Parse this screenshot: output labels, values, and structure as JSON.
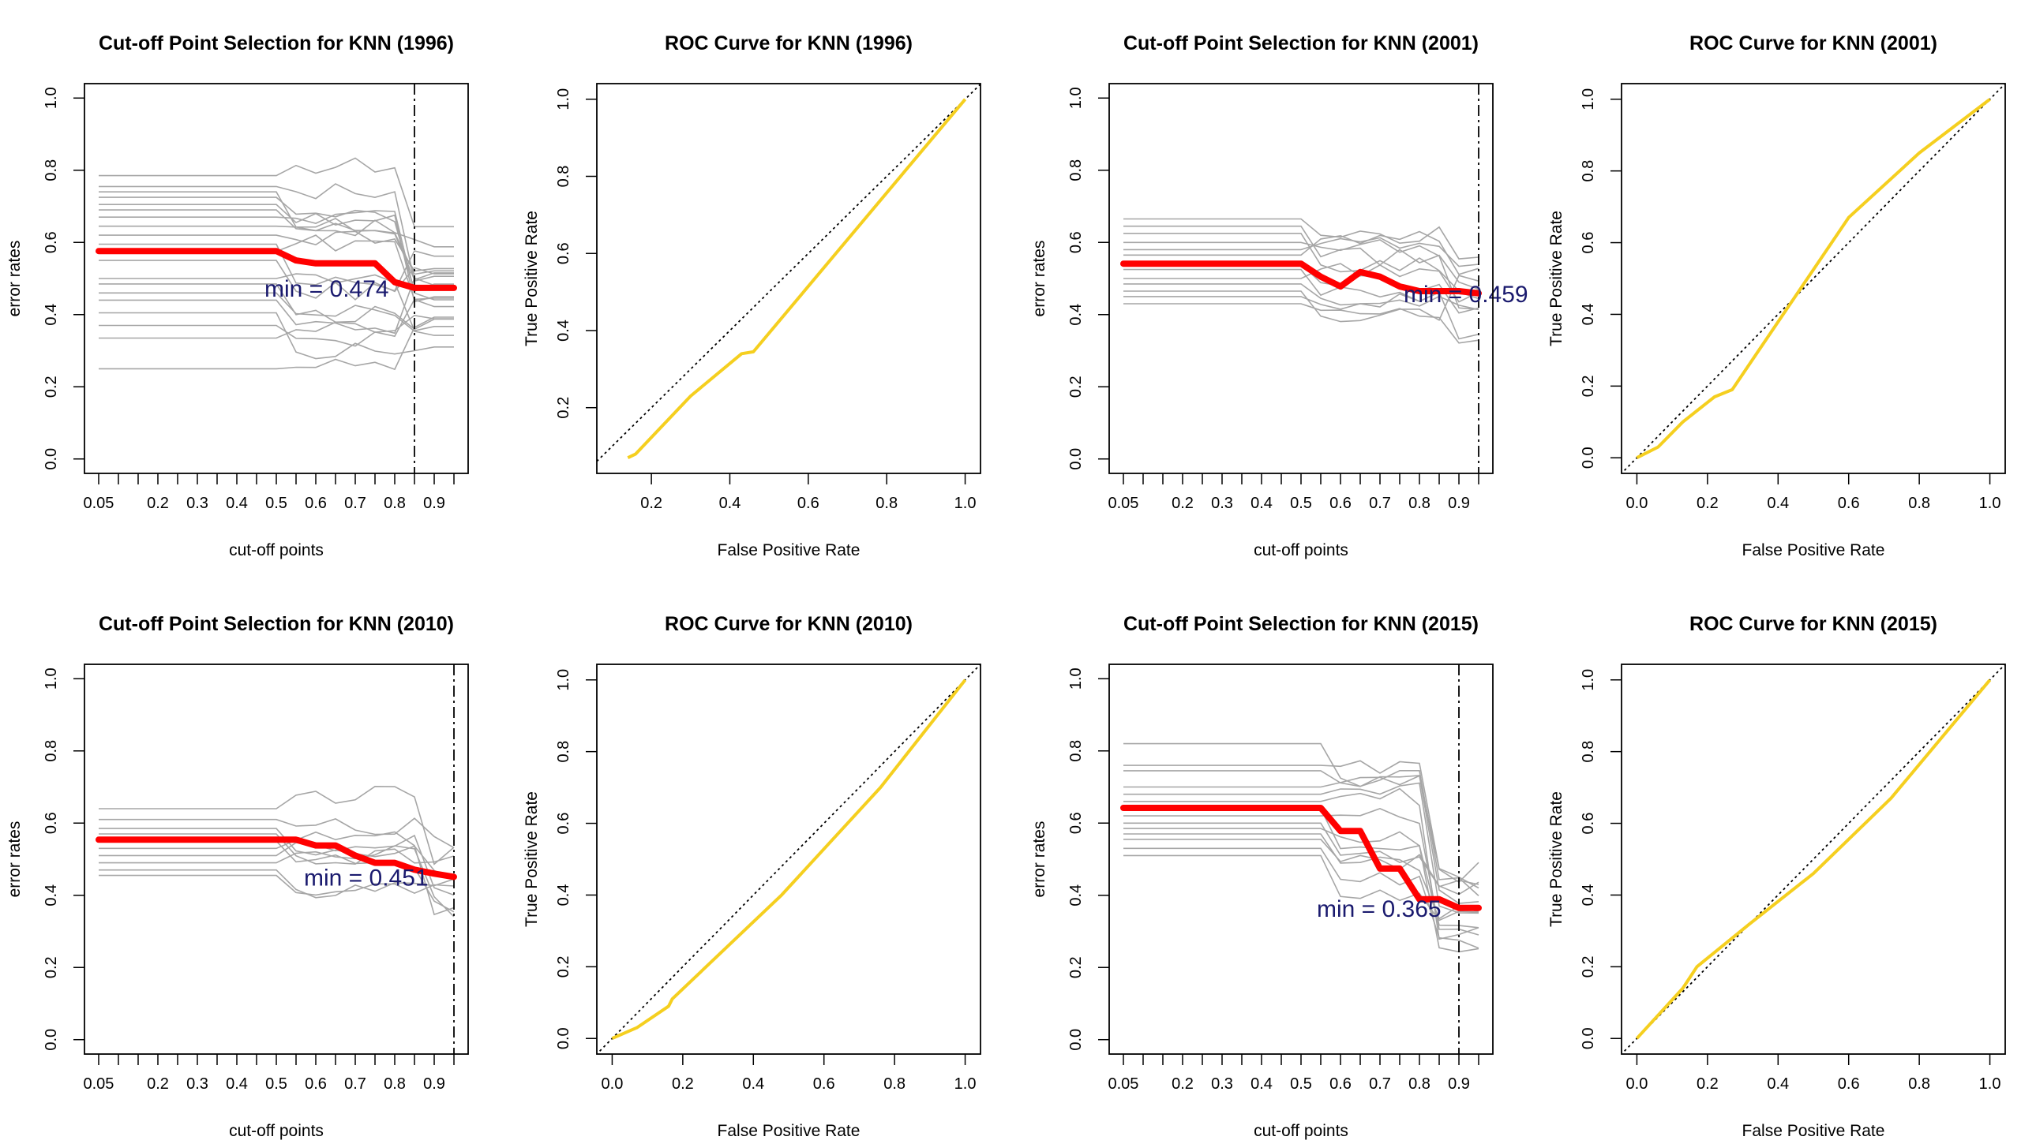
{
  "colors": {
    "mean_line": "#ff0000",
    "thin_lines": "#a6a6a6",
    "roc_line": "#f5cf1f",
    "annotation": "#1a1a6e",
    "axes": "#000000"
  },
  "chart_data": [
    {
      "type": "line",
      "title": "Cut-off Point Selection for KNN (1996)",
      "xlabel": "cut-off points",
      "ylabel": "error rates",
      "x": [
        0.05,
        0.1,
        0.15,
        0.2,
        0.25,
        0.3,
        0.35,
        0.4,
        0.45,
        0.5,
        0.55,
        0.6,
        0.65,
        0.7,
        0.75,
        0.8,
        0.85,
        0.9,
        0.95
      ],
      "xticks": [
        "0.05",
        "0.2",
        "0.3",
        "0.4",
        "0.5",
        "0.6",
        "0.7",
        "0.8",
        "0.9"
      ],
      "yticks": [
        "0.0",
        "0.2",
        "0.4",
        "0.6",
        "0.8",
        "1.0"
      ],
      "xlim": [
        0.05,
        0.95
      ],
      "ylim": [
        0.0,
        1.0
      ],
      "mean": [
        0.576,
        0.576,
        0.576,
        0.576,
        0.576,
        0.576,
        0.576,
        0.576,
        0.576,
        0.576,
        0.55,
        0.542,
        0.542,
        0.542,
        0.542,
        0.49,
        0.474,
        0.474,
        0.474
      ],
      "fold_levels": [
        0.785,
        0.755,
        0.74,
        0.725,
        0.705,
        0.69,
        0.67,
        0.645,
        0.62,
        0.595,
        0.575,
        0.55,
        0.5,
        0.485,
        0.46,
        0.44,
        0.405,
        0.37,
        0.335,
        0.25
      ],
      "fold_change": [
        0.5,
        0.55,
        0.8,
        0.85
      ],
      "cutoff_line": 0.85,
      "min_label": "min = 0.474",
      "min_label_pos": [
        0.47,
        0.474
      ]
    },
    {
      "type": "line",
      "title": "ROC Curve for KNN (1996)",
      "xlabel": "False Positive Rate",
      "ylabel": "True Positive Rate",
      "xlim": [
        0.1,
        1.0
      ],
      "ylim": [
        0.07,
        1.0
      ],
      "xticks": [
        "0.2",
        "0.4",
        "0.6",
        "0.8",
        "1.0"
      ],
      "yticks": [
        "0.2",
        "0.4",
        "0.6",
        "0.8",
        "1.0"
      ],
      "roc": [
        [
          0.14,
          0.07
        ],
        [
          0.16,
          0.08
        ],
        [
          0.3,
          0.23
        ],
        [
          0.43,
          0.34
        ],
        [
          0.46,
          0.345
        ],
        [
          1.0,
          1.0
        ]
      ]
    },
    {
      "type": "line",
      "title": "Cut-off Point Selection for KNN (2001)",
      "xlabel": "cut-off points",
      "ylabel": "error rates",
      "x": [
        0.05,
        0.1,
        0.15,
        0.2,
        0.25,
        0.3,
        0.35,
        0.4,
        0.45,
        0.5,
        0.55,
        0.6,
        0.65,
        0.7,
        0.75,
        0.8,
        0.85,
        0.9,
        0.95
      ],
      "xticks": [
        "0.05",
        "0.2",
        "0.3",
        "0.4",
        "0.5",
        "0.6",
        "0.7",
        "0.8",
        "0.9"
      ],
      "yticks": [
        "0.0",
        "0.2",
        "0.4",
        "0.6",
        "0.8",
        "1.0"
      ],
      "xlim": [
        0.05,
        0.95
      ],
      "ylim": [
        0.0,
        1.0
      ],
      "mean": [
        0.541,
        0.541,
        0.541,
        0.541,
        0.541,
        0.541,
        0.541,
        0.541,
        0.541,
        0.541,
        0.505,
        0.478,
        0.518,
        0.505,
        0.478,
        0.465,
        0.465,
        0.465,
        0.459
      ],
      "fold_levels": [
        0.665,
        0.645,
        0.625,
        0.6,
        0.58,
        0.565,
        0.54,
        0.525,
        0.5,
        0.485,
        0.465,
        0.45,
        0.43
      ],
      "fold_change": [
        0.5,
        0.55,
        0.85,
        0.9
      ],
      "cutoff_line": 0.95,
      "min_label": "min = 0.459",
      "min_label_pos": [
        0.76,
        0.459
      ]
    },
    {
      "type": "line",
      "title": "ROC Curve for KNN (2001)",
      "xlabel": "False Positive Rate",
      "ylabel": "True Positive Rate",
      "xlim": [
        0.0,
        1.0
      ],
      "ylim": [
        0.0,
        1.0
      ],
      "xticks": [
        "0.0",
        "0.2",
        "0.4",
        "0.6",
        "0.8",
        "1.0"
      ],
      "yticks": [
        "0.0",
        "0.2",
        "0.4",
        "0.6",
        "0.8",
        "1.0"
      ],
      "roc": [
        [
          0.0,
          0.0
        ],
        [
          0.06,
          0.03
        ],
        [
          0.13,
          0.1
        ],
        [
          0.22,
          0.17
        ],
        [
          0.27,
          0.19
        ],
        [
          0.6,
          0.67
        ],
        [
          0.8,
          0.85
        ],
        [
          1.0,
          1.0
        ]
      ]
    },
    {
      "type": "line",
      "title": "Cut-off Point Selection for KNN (2010)",
      "xlabel": "cut-off points",
      "ylabel": "error rates",
      "x": [
        0.05,
        0.1,
        0.15,
        0.2,
        0.25,
        0.3,
        0.35,
        0.4,
        0.45,
        0.5,
        0.55,
        0.6,
        0.65,
        0.7,
        0.75,
        0.8,
        0.85,
        0.9,
        0.95
      ],
      "xticks": [
        "0.05",
        "0.2",
        "0.3",
        "0.4",
        "0.5",
        "0.6",
        "0.7",
        "0.8",
        "0.9"
      ],
      "yticks": [
        "0.0",
        "0.2",
        "0.4",
        "0.6",
        "0.8",
        "1.0"
      ],
      "xlim": [
        0.05,
        0.95
      ],
      "ylim": [
        0.0,
        1.0
      ],
      "mean": [
        0.554,
        0.554,
        0.554,
        0.554,
        0.554,
        0.554,
        0.554,
        0.554,
        0.554,
        0.554,
        0.554,
        0.538,
        0.538,
        0.51,
        0.49,
        0.49,
        0.471,
        0.46,
        0.451
      ],
      "fold_levels": [
        0.64,
        0.61,
        0.585,
        0.57,
        0.55,
        0.53,
        0.51,
        0.49,
        0.47,
        0.455
      ],
      "fold_change": [
        0.5,
        0.55,
        0.85,
        0.95
      ],
      "cutoff_line": 0.95,
      "min_label": "min = 0.451",
      "min_label_pos": [
        0.57,
        0.451
      ]
    },
    {
      "type": "line",
      "title": "ROC Curve for KNN (2010)",
      "xlabel": "False Positive Rate",
      "ylabel": "True Positive Rate",
      "xlim": [
        0.0,
        1.0
      ],
      "ylim": [
        0.0,
        1.0
      ],
      "xticks": [
        "0.0",
        "0.2",
        "0.4",
        "0.6",
        "0.8",
        "1.0"
      ],
      "yticks": [
        "0.0",
        "0.2",
        "0.4",
        "0.6",
        "0.8",
        "1.0"
      ],
      "roc": [
        [
          0.0,
          0.0
        ],
        [
          0.07,
          0.03
        ],
        [
          0.16,
          0.09
        ],
        [
          0.17,
          0.11
        ],
        [
          0.48,
          0.4
        ],
        [
          0.76,
          0.7
        ],
        [
          1.0,
          1.0
        ]
      ]
    },
    {
      "type": "line",
      "title": "Cut-off Point Selection for KNN (2015)",
      "xlabel": "cut-off points",
      "ylabel": "error rates",
      "x": [
        0.05,
        0.1,
        0.15,
        0.2,
        0.25,
        0.3,
        0.35,
        0.4,
        0.45,
        0.5,
        0.55,
        0.6,
        0.65,
        0.7,
        0.75,
        0.8,
        0.85,
        0.9,
        0.95
      ],
      "xticks": [
        "0.05",
        "0.2",
        "0.3",
        "0.4",
        "0.5",
        "0.6",
        "0.7",
        "0.8",
        "0.9"
      ],
      "yticks": [
        "0.0",
        "0.2",
        "0.4",
        "0.6",
        "0.8",
        "1.0"
      ],
      "xlim": [
        0.05,
        0.95
      ],
      "ylim": [
        0.0,
        1.0
      ],
      "mean": [
        0.642,
        0.642,
        0.642,
        0.642,
        0.642,
        0.642,
        0.642,
        0.642,
        0.642,
        0.642,
        0.642,
        0.578,
        0.578,
        0.474,
        0.474,
        0.389,
        0.389,
        0.365,
        0.365
      ],
      "fold_levels": [
        0.82,
        0.76,
        0.745,
        0.7,
        0.68,
        0.66,
        0.64,
        0.62,
        0.6,
        0.585,
        0.57,
        0.555,
        0.53,
        0.51
      ],
      "fold_change": [
        0.55,
        0.6,
        0.8,
        0.95
      ],
      "cutoff_line": 0.9,
      "min_label": "min = 0.365",
      "min_label_pos": [
        0.54,
        0.365
      ]
    },
    {
      "type": "line",
      "title": "ROC Curve for KNN (2015)",
      "xlabel": "False Positive Rate",
      "ylabel": "True Positive Rate",
      "xlim": [
        0.0,
        1.0
      ],
      "ylim": [
        0.0,
        1.0
      ],
      "xticks": [
        "0.0",
        "0.2",
        "0.4",
        "0.6",
        "0.8",
        "1.0"
      ],
      "yticks": [
        "0.0",
        "0.2",
        "0.4",
        "0.6",
        "0.8",
        "1.0"
      ],
      "roc": [
        [
          0.0,
          0.0
        ],
        [
          0.13,
          0.14
        ],
        [
          0.17,
          0.2
        ],
        [
          0.32,
          0.32
        ],
        [
          0.5,
          0.46
        ],
        [
          0.72,
          0.67
        ],
        [
          1.0,
          1.0
        ]
      ]
    }
  ]
}
